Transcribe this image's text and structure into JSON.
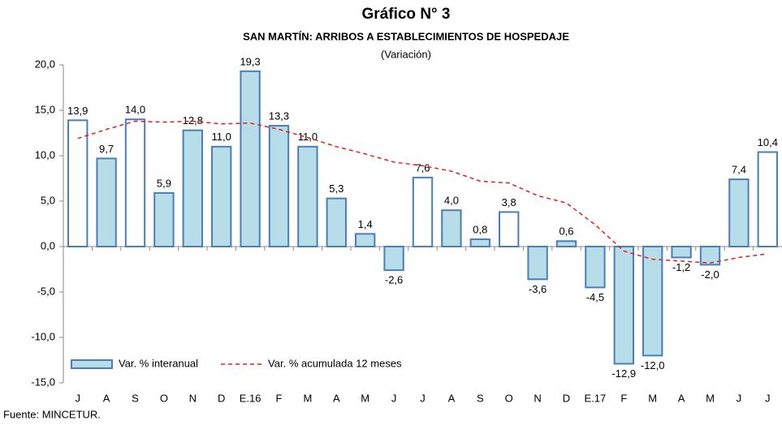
{
  "chart_data": {
    "type": "bar",
    "title": "Gráfico N° 3",
    "subtitle": "SAN MARTÍN: ARRIBOS A ESTABLECIMIENTOS DE HOSPEDAJE",
    "annotation": "(Variación)",
    "source": "Fuente: MINCETUR.",
    "categories": [
      "J",
      "A",
      "S",
      "O",
      "N",
      "D",
      "E.16",
      "F",
      "M",
      "A",
      "M",
      "J",
      "J",
      "A",
      "S",
      "O",
      "N",
      "D",
      "E.17",
      "F",
      "M",
      "A",
      "M",
      "J",
      "J"
    ],
    "series": [
      {
        "name": "Var. % interanual",
        "type": "bar",
        "color": "#b7dde8",
        "edge_color": "#4a7ebb",
        "values": [
          13.9,
          9.7,
          14.0,
          5.9,
          12.8,
          11.0,
          19.3,
          13.3,
          11.0,
          5.3,
          1.4,
          -2.6,
          7.6,
          4.0,
          0.8,
          3.8,
          -3.6,
          0.6,
          -4.5,
          -12.9,
          -12.0,
          -1.2,
          -2.0,
          7.4,
          10.4
        ],
        "value_labels": [
          "13,9",
          "9,7",
          "14,0",
          "5,9",
          "12,8",
          "11,0",
          "19,3",
          "13,3",
          "11,0",
          "5,3",
          "1,4",
          "-2,6",
          "7,6",
          "4,0",
          "0,8",
          "3,8",
          "-3,6",
          "0,6",
          "-4,5",
          "-12,9",
          "-12,0",
          "-1,2",
          "-2,0",
          "7,4",
          "10,4"
        ],
        "bar_colors": [
          "#ffffff",
          "#b7dde8",
          "#ffffff",
          "#b7dde8",
          "#b7dde8",
          "#b7dde8",
          "#b7dde8",
          "#b7dde8",
          "#b7dde8",
          "#b7dde8",
          "#b7dde8",
          "#b7dde8",
          "#ffffff",
          "#b7dde8",
          "#b7dde8",
          "#ffffff",
          "#b7dde8",
          "#b7dde8",
          "#b7dde8",
          "#b7dde8",
          "#b7dde8",
          "#b7dde8",
          "#b7dde8",
          "#b7dde8",
          "#ffffff"
        ]
      },
      {
        "name": "Var. % acumulada 12 meses",
        "type": "line",
        "color": "#e02020",
        "dashed": true,
        "values": [
          11.9,
          12.9,
          13.8,
          13.7,
          13.8,
          13.5,
          13.6,
          12.9,
          12.0,
          11.0,
          10.2,
          9.3,
          8.9,
          8.3,
          7.2,
          7.0,
          5.6,
          4.8,
          2.4,
          -0.5,
          -1.4,
          -1.6,
          -1.8,
          -1.2,
          -0.8
        ]
      }
    ],
    "ylim": [
      -15,
      20
    ],
    "yticks": [
      {
        "value": -15,
        "label": "-15,0"
      },
      {
        "value": -10,
        "label": "-10,0"
      },
      {
        "value": -5,
        "label": "-5,0"
      },
      {
        "value": 0,
        "label": "0,0"
      },
      {
        "value": 5,
        "label": "5,0"
      },
      {
        "value": 10,
        "label": "10,0"
      },
      {
        "value": 15,
        "label": "15,0"
      },
      {
        "value": 20,
        "label": "20,0"
      }
    ],
    "legend": "lower-left"
  }
}
